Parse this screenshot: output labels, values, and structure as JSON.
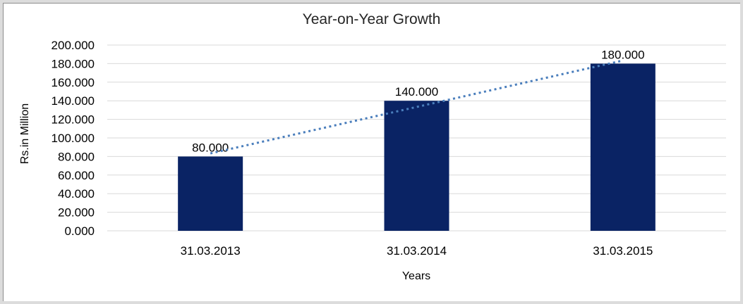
{
  "chart_data": {
    "type": "bar",
    "title": "Year-on-Year Growth",
    "xlabel": "Years",
    "ylabel": "Rs.in Million",
    "categories": [
      "31.03.2013",
      "31.03.2014",
      "31.03.2015"
    ],
    "values": [
      80,
      140,
      180
    ],
    "value_labels": [
      "80.000",
      "140.000",
      "180.000"
    ],
    "y_tick_labels": [
      "0.000",
      "20.000",
      "40.000",
      "60.000",
      "80.000",
      "100.000",
      "120.000",
      "140.000",
      "160.000",
      "180.000",
      "200.000"
    ],
    "y_tick_step": 20,
    "ylim": [
      0,
      200
    ],
    "grid": true,
    "legend": "none",
    "trendline": {
      "type": "linear",
      "style": "dotted"
    },
    "colors": {
      "bar": "#0a2364",
      "trendline": "#4a7ebc",
      "gridline": "#d9d9d9",
      "title_text": "#262626",
      "tick_text": "#000000",
      "frame_border": "#dcdcdc",
      "frame_inner_line": "#8c8c8c",
      "background": "#ffffff"
    }
  }
}
